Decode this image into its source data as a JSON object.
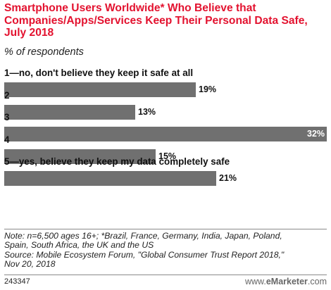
{
  "title": "Smartphone Users Worldwide* Who Believe that Companies/Apps/Services Keep Their Personal Data Safe, July 2018",
  "subtitle": "% of respondents",
  "chart_data": {
    "type": "bar",
    "orientation": "horizontal",
    "categories": [
      "1—no, don't believe they keep it safe at all",
      "2",
      "3",
      "4",
      "5—yes, believe they keep my data completely safe"
    ],
    "values": [
      19,
      13,
      32,
      15,
      21
    ],
    "value_labels": [
      "19%",
      "13%",
      "32%",
      "15%",
      "21%"
    ],
    "xlim": [
      0,
      32
    ],
    "grid": false,
    "legend": "none",
    "bar_color": "#707070"
  },
  "notes": [
    "Note: n=6,500 ages 16+; *Brazil, France, Germany, India, Japan, Poland,",
    "Spain, South Africa, the UK and the US",
    "Source: Mobile Ecosystem Forum, \"Global Consumer Trust Report 2018,\"",
    "Nov 20, 2018"
  ],
  "footer": {
    "id": "243347",
    "logo_prefix": "www.",
    "logo_brand": "eMarketer",
    "logo_suffix": ".com"
  },
  "colors": {
    "title": "#e3122f",
    "bar": "#707070",
    "value_inside": "#ffffff",
    "value_outside": "#111111"
  }
}
